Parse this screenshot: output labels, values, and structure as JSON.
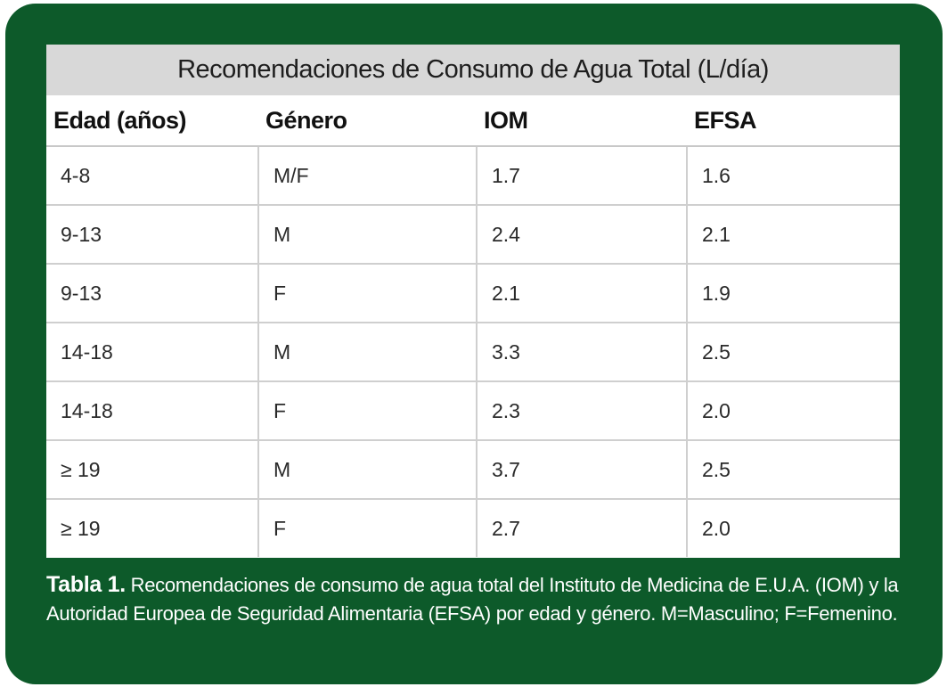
{
  "table": {
    "title": "Recomendaciones de Consumo de Agua Total (L/día)",
    "headers": [
      "Edad (años)",
      "Género",
      "IOM",
      "EFSA"
    ],
    "rows": [
      [
        "4-8",
        "M/F",
        "1.7",
        "1.6"
      ],
      [
        "9-13",
        "M",
        "2.4",
        "2.1"
      ],
      [
        "9-13",
        "F",
        "2.1",
        "1.9"
      ],
      [
        "14-18",
        "M",
        "3.3",
        "2.5"
      ],
      [
        "14-18",
        "F",
        "2.3",
        "2.0"
      ],
      [
        "≥ 19",
        "M",
        "3.7",
        "2.5"
      ],
      [
        "≥ 19",
        "F",
        "2.7",
        "2.0"
      ]
    ]
  },
  "caption": {
    "label": "Tabla 1.",
    "text": " Recomendaciones de consumo de agua total del Instituto de Medicina de E.U.A. (IOM) y la Autoridad Europea de Seguridad Alimentaria (EFSA) por edad y género. M=Masculino; F=Femenino."
  },
  "colors": {
    "frame": "#0d5a2a",
    "title_band": "#d8d8d8"
  }
}
